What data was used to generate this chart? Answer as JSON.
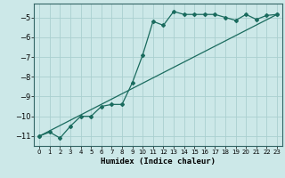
{
  "xlabel": "Humidex (Indice chaleur)",
  "bg_color": "#cce8e8",
  "grid_color": "#aad0d0",
  "line_color": "#1a6b5e",
  "xlim": [
    -0.5,
    23.5
  ],
  "ylim": [
    -11.5,
    -4.3
  ],
  "yticks": [
    -11,
    -10,
    -9,
    -8,
    -7,
    -6,
    -5
  ],
  "xticks": [
    0,
    1,
    2,
    3,
    4,
    5,
    6,
    7,
    8,
    9,
    10,
    11,
    12,
    13,
    14,
    15,
    16,
    17,
    18,
    19,
    20,
    21,
    22,
    23
  ],
  "line1_x": [
    0,
    1,
    2,
    3,
    4,
    5,
    6,
    7,
    8,
    9,
    10,
    11,
    12,
    13,
    14,
    15,
    16,
    17,
    18,
    19,
    20,
    21,
    22,
    23
  ],
  "line1_y": [
    -11.0,
    -10.8,
    -11.1,
    -10.5,
    -10.0,
    -10.0,
    -9.5,
    -9.4,
    -9.4,
    -8.3,
    -6.9,
    -5.2,
    -5.4,
    -4.7,
    -4.85,
    -4.85,
    -4.85,
    -4.85,
    -5.0,
    -5.15,
    -4.85,
    -5.1,
    -4.9,
    -4.85
  ],
  "line2_x": [
    0,
    23
  ],
  "line2_y": [
    -11.0,
    -4.85
  ]
}
